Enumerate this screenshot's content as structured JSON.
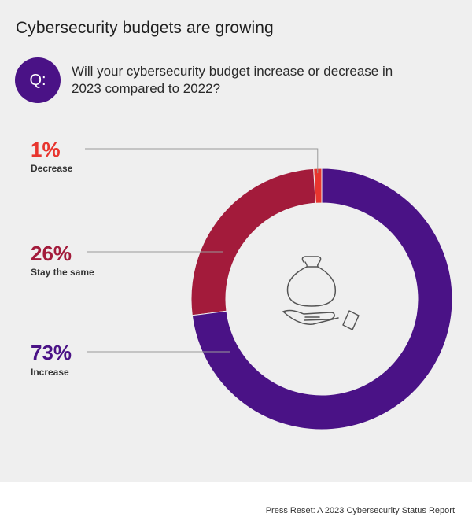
{
  "title": "Cybersecurity budgets are growing",
  "question": {
    "badge": "Q:",
    "text": "Will your cybersecurity budget increase or decrease in 2023 compared to 2022?"
  },
  "colors": {
    "decrease": "#e8352e",
    "same": "#a31b3b",
    "increase": "#4a1286",
    "badge": "#4a1286"
  },
  "icon": "money-bag-in-hand-icon",
  "chart_data": {
    "type": "pie",
    "donut": true,
    "slices": [
      {
        "label": "Decrease",
        "value": 1,
        "display": "1%"
      },
      {
        "label": "Stay the same",
        "value": 26,
        "display": "26%"
      },
      {
        "label": "Increase",
        "value": 73,
        "display": "73%"
      }
    ]
  },
  "source": "Press Reset: A 2023 Cybersecurity Status Report"
}
